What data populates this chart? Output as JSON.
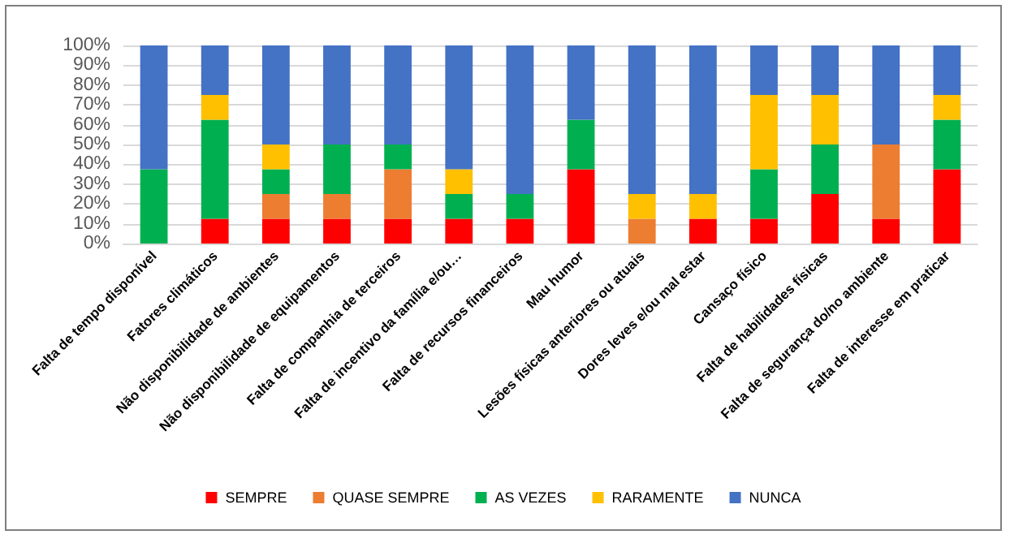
{
  "chart_data": {
    "type": "bar",
    "stacked": true,
    "categories": [
      "Falta de tempo disponível",
      "Fatores climáticos",
      "Não disponibilidade de ambientes",
      "Não disponibilidade de equipamentos",
      "Falta de companhia de terceiros",
      "Falta de incentivo da família e/ou…",
      "Falta de recursos financeiros",
      "Mau humor",
      "Lesões físicas anteriores ou atuais",
      "Dores leves e/ou mal estar",
      "Cansaço físico",
      "Falta de habilidades físicas",
      "Falta de segurança do/no ambiente",
      "Falta de interesse em praticar"
    ],
    "series": [
      {
        "name": "SEMPRE",
        "color": "#ff0000",
        "values": [
          0,
          12.5,
          12.5,
          12.5,
          12.5,
          12.5,
          12.5,
          37.5,
          0,
          12.5,
          12.5,
          25,
          12.5,
          37.5
        ]
      },
      {
        "name": "QUASE SEMPRE",
        "color": "#ed7d31",
        "values": [
          0,
          0,
          12.5,
          12.5,
          25,
          0,
          0,
          0,
          12.5,
          0,
          0,
          0,
          37.5,
          0
        ]
      },
      {
        "name": "AS VEZES",
        "color": "#00b050",
        "values": [
          37.5,
          50,
          12.5,
          25,
          12.5,
          12.5,
          12.5,
          25,
          0,
          0,
          25,
          25,
          0,
          25
        ]
      },
      {
        "name": "RARAMENTE",
        "color": "#ffc000",
        "values": [
          0,
          12.5,
          12.5,
          0,
          0,
          12.5,
          0,
          0,
          12.5,
          12.5,
          37.5,
          25,
          0,
          12.5
        ]
      },
      {
        "name": "NUNCA",
        "color": "#4472c4",
        "values": [
          62.5,
          25,
          50,
          50,
          50,
          62.5,
          75,
          37.5,
          75,
          75,
          25,
          25,
          50,
          25
        ]
      }
    ],
    "ylim": [
      0,
      100
    ],
    "yticks": [
      {
        "value": 0,
        "label": "0%"
      },
      {
        "value": 10,
        "label": "10%"
      },
      {
        "value": 20,
        "label": "20%"
      },
      {
        "value": 30,
        "label": "30%"
      },
      {
        "value": 40,
        "label": "40%"
      },
      {
        "value": 50,
        "label": "50%"
      },
      {
        "value": 60,
        "label": "60%"
      },
      {
        "value": 70,
        "label": "70%"
      },
      {
        "value": 80,
        "label": "80%"
      },
      {
        "value": 90,
        "label": "90%"
      },
      {
        "value": 100,
        "label": "100%"
      }
    ],
    "grid": "y",
    "legend": "bottom"
  }
}
